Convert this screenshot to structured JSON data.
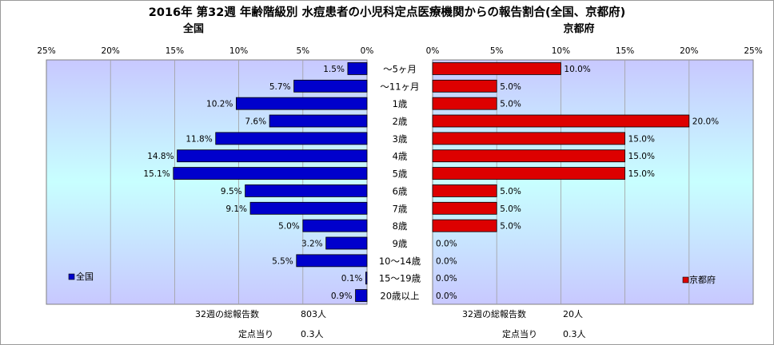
{
  "title": "2016年 第32週 年齢階級別 水痘患者の小児科定点医療機関からの報告割合(全国、京都府)",
  "categories": [
    "～5ヶ月",
    "～11ヶ月",
    "1歳",
    "2歳",
    "3歳",
    "4歳",
    "5歳",
    "6歳",
    "7歳",
    "8歳",
    "9歳",
    "10～14歳",
    "15～19歳",
    "20歳以上"
  ],
  "colors": {
    "national": "#0000cc",
    "kyoto": "#dd0000",
    "plot_top": "#c8c8ff",
    "plot_mid": "#c8ffff"
  },
  "chart_data": [
    {
      "type": "bar",
      "title": "全国",
      "orientation": "horizontal",
      "direction": "right-to-left",
      "categories": [
        "～5ヶ月",
        "～11ヶ月",
        "1歳",
        "2歳",
        "3歳",
        "4歳",
        "5歳",
        "6歳",
        "7歳",
        "8歳",
        "9歳",
        "10～14歳",
        "15～19歳",
        "20歳以上"
      ],
      "series": [
        {
          "name": "全国",
          "values": [
            1.5,
            5.7,
            10.2,
            7.6,
            11.8,
            14.8,
            15.1,
            9.5,
            9.1,
            5.0,
            3.2,
            5.5,
            0.1,
            0.9
          ]
        }
      ],
      "xlim": [
        0,
        25
      ],
      "ticks": [
        "25%",
        "20%",
        "15%",
        "10%",
        "5%",
        "0%"
      ],
      "legend": "bottom-left",
      "grid": true
    },
    {
      "type": "bar",
      "title": "京都府",
      "orientation": "horizontal",
      "direction": "left-to-right",
      "categories": [
        "～5ヶ月",
        "～11ヶ月",
        "1歳",
        "2歳",
        "3歳",
        "4歳",
        "5歳",
        "6歳",
        "7歳",
        "8歳",
        "9歳",
        "10～14歳",
        "15～19歳",
        "20歳以上"
      ],
      "series": [
        {
          "name": "京都府",
          "values": [
            10.0,
            5.0,
            5.0,
            20.0,
            15.0,
            15.0,
            15.0,
            5.0,
            5.0,
            5.0,
            0.0,
            0.0,
            0.0,
            0.0
          ]
        }
      ],
      "xlim": [
        0,
        25
      ],
      "ticks": [
        "0%",
        "5%",
        "10%",
        "15%",
        "20%",
        "25%"
      ],
      "legend": "bottom-right",
      "grid": true
    }
  ],
  "footer": {
    "national_total_label": "32週の総報告数",
    "national_total_value": "803人",
    "national_per_label": "定点当り",
    "national_per_value": "0.3人",
    "kyoto_total_label": "32週の総報告数",
    "kyoto_total_value": "20人",
    "kyoto_per_label": "定点当り",
    "kyoto_per_value": "0.3人"
  }
}
